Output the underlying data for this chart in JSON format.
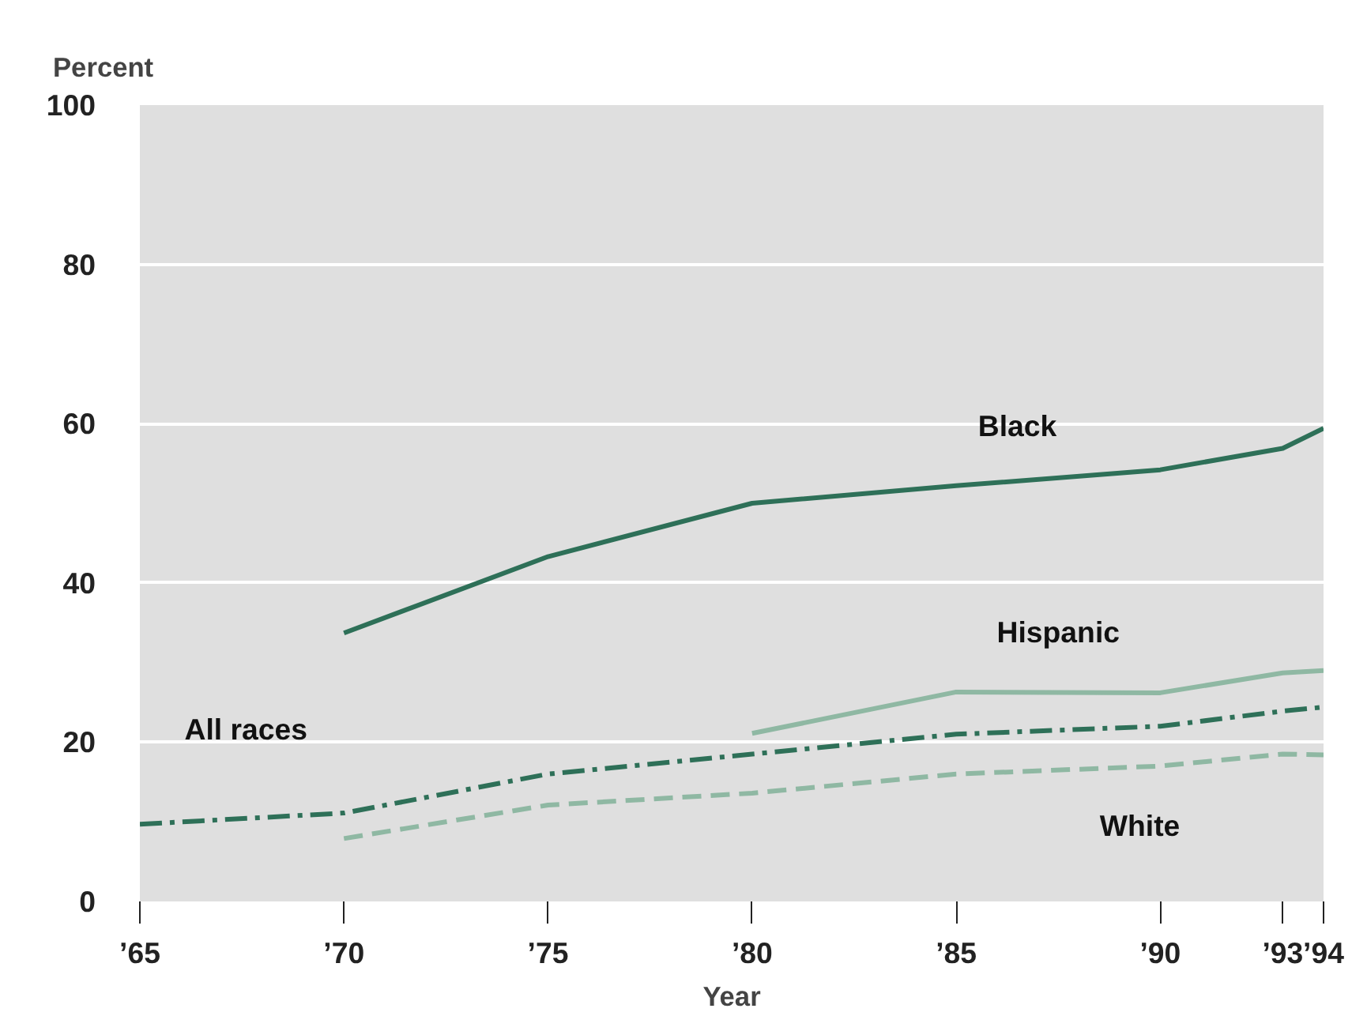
{
  "chart_data": {
    "type": "line",
    "ylabel": "Percent",
    "xlabel": "Year",
    "x": [
      1965,
      1970,
      1975,
      1980,
      1985,
      1990,
      1993,
      1994
    ],
    "series": [
      {
        "name": "Black",
        "color": "#2e7058",
        "line_style": "solid",
        "values": [
          null,
          33.7,
          43.3,
          50.0,
          52.2,
          54.2,
          56.9,
          59.4
        ]
      },
      {
        "name": "Hispanic",
        "color": "#8fb8a3",
        "line_style": "solid",
        "values": [
          null,
          null,
          null,
          21.1,
          26.3,
          26.2,
          28.7,
          29.0
        ]
      },
      {
        "name": "All races",
        "color": "#2e7058",
        "line_style": "dashdot",
        "values": [
          9.7,
          11.1,
          16.0,
          18.5,
          21.0,
          22.0,
          23.9,
          24.4
        ]
      },
      {
        "name": "White",
        "color": "#8fb8a3",
        "line_style": "dashed",
        "values": [
          null,
          7.9,
          12.1,
          13.6,
          16.0,
          17.0,
          18.5,
          18.4
        ]
      }
    ],
    "xlim": [
      1965,
      1994
    ],
    "ylim": [
      0,
      100
    ],
    "xticks": [
      {
        "value": 1965,
        "label": "’65"
      },
      {
        "value": 1970,
        "label": "’70"
      },
      {
        "value": 1975,
        "label": "’75"
      },
      {
        "value": 1980,
        "label": "’80"
      },
      {
        "value": 1985,
        "label": "’85"
      },
      {
        "value": 1990,
        "label": "’90"
      },
      {
        "value": 1993,
        "label": "’93"
      },
      {
        "value": 1994,
        "label": "’94"
      }
    ],
    "yticks": [
      0,
      20,
      40,
      60,
      80,
      100
    ],
    "grid": "y",
    "marker": "none"
  }
}
